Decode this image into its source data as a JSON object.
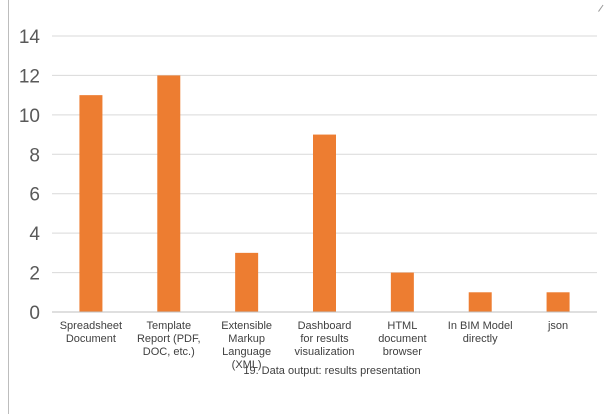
{
  "chart_data": {
    "type": "bar",
    "title": "",
    "xlabel": "19. Data output: results presentation",
    "ylabel": "",
    "ylim": [
      0,
      14
    ],
    "yticks": [
      0,
      2,
      4,
      6,
      8,
      10,
      12,
      14
    ],
    "grid": true,
    "legend": "none",
    "bar_color": "#ed7d31",
    "categories": [
      [
        "Spreadsheet",
        "Document"
      ],
      [
        "Template",
        "Report (PDF,",
        "DOC, etc.)"
      ],
      [
        "Extensible",
        "Markup",
        "Language",
        "(XML)"
      ],
      [
        "Dashboard",
        "for results",
        "visualization"
      ],
      [
        "HTML",
        "document",
        "browser"
      ],
      [
        "In BIM Model",
        "directly"
      ],
      [
        "json"
      ]
    ],
    "values": [
      11,
      12,
      3,
      9,
      2,
      1,
      1
    ]
  }
}
